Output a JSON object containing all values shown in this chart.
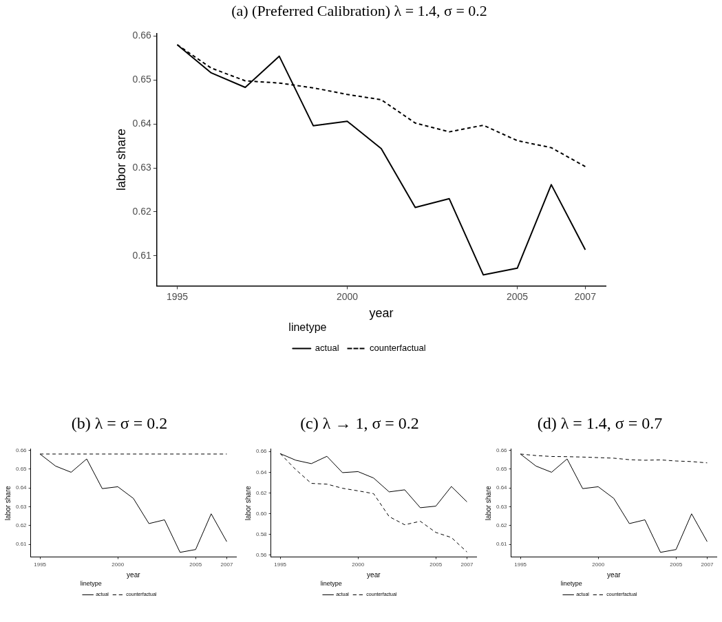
{
  "chart_data": [
    {
      "type": "line",
      "title": "(a) (Preferred Calibration) λ = 1.4, σ = 0.2",
      "xlabel": "year",
      "ylabel": "labor share",
      "legend_title": "linetype",
      "legend": "bottom",
      "grid": false,
      "marker": "none",
      "x": [
        1995,
        1996,
        1997,
        1998,
        1999,
        2000,
        2001,
        2002,
        2003,
        2004,
        2005,
        2006,
        2007
      ],
      "series": [
        {
          "name": "actual",
          "color": "#000000",
          "line_style": "solid",
          "values": [
            0.658,
            0.6516,
            0.6483,
            0.6554,
            0.6396,
            0.6406,
            0.6344,
            0.621,
            0.623,
            0.6057,
            0.6072,
            0.6262,
            0.6114
          ]
        },
        {
          "name": "counterfactual",
          "color": "#000000",
          "line_style": "dashed",
          "values": [
            0.658,
            0.6527,
            0.6498,
            0.6493,
            0.6482,
            0.6467,
            0.6455,
            0.6402,
            0.6382,
            0.6397,
            0.6362,
            0.6346,
            0.6303
          ]
        }
      ],
      "xlim": [
        1994.4,
        2007.6
      ],
      "xticks": [
        1995,
        2000,
        2005,
        2007
      ],
      "ylim": [
        0.6032,
        0.6606
      ],
      "yticks": [
        0.61,
        0.62,
        0.63,
        0.64,
        0.65,
        0.66
      ]
    },
    {
      "type": "line",
      "title": "(b) λ = σ = 0.2",
      "xlabel": "year",
      "ylabel": "labor share",
      "legend_title": "linetype",
      "legend": "bottom",
      "grid": false,
      "marker": "none",
      "x": [
        1995,
        1996,
        1997,
        1998,
        1999,
        2000,
        2001,
        2002,
        2003,
        2004,
        2005,
        2006,
        2007
      ],
      "series": [
        {
          "name": "actual",
          "color": "#000000",
          "line_style": "solid",
          "values": [
            0.658,
            0.6516,
            0.6483,
            0.6554,
            0.6396,
            0.6406,
            0.6344,
            0.621,
            0.623,
            0.6057,
            0.6072,
            0.6262,
            0.6114
          ]
        },
        {
          "name": "counterfactual",
          "color": "#000000",
          "line_style": "dashed",
          "values": [
            0.658,
            0.658,
            0.658,
            0.658,
            0.658,
            0.658,
            0.658,
            0.658,
            0.658,
            0.658,
            0.658,
            0.658,
            0.658
          ]
        }
      ],
      "xlim": [
        1994.4,
        2007.6
      ],
      "xticks": [
        1995,
        2000,
        2005,
        2007
      ],
      "ylim": [
        0.6032,
        0.6606
      ],
      "yticks": [
        0.61,
        0.62,
        0.63,
        0.64,
        0.65,
        0.66
      ]
    },
    {
      "type": "line",
      "title": "(c) λ → 1, σ = 0.2",
      "xlabel": "year",
      "ylabel": "labor share",
      "legend_title": "linetype",
      "legend": "bottom",
      "grid": false,
      "marker": "none",
      "x": [
        1995,
        1996,
        1997,
        1998,
        1999,
        2000,
        2001,
        2002,
        2003,
        2004,
        2005,
        2006,
        2007
      ],
      "series": [
        {
          "name": "actual",
          "color": "#000000",
          "line_style": "solid",
          "values": [
            0.658,
            0.6516,
            0.6483,
            0.6554,
            0.6396,
            0.6406,
            0.6344,
            0.621,
            0.623,
            0.6057,
            0.6072,
            0.6262,
            0.6114
          ]
        },
        {
          "name": "counterfactual",
          "color": "#000000",
          "line_style": "dashed",
          "values": [
            0.658,
            0.6425,
            0.6292,
            0.6285,
            0.6245,
            0.622,
            0.6193,
            0.5971,
            0.5892,
            0.5926,
            0.5818,
            0.5769,
            0.5629
          ]
        }
      ],
      "xlim": [
        1994.4,
        2007.6
      ],
      "xticks": [
        1995,
        2000,
        2005,
        2007
      ],
      "ylim": [
        0.558,
        0.6623
      ],
      "yticks": [
        0.56,
        0.58,
        {
          "value": 0.6,
          "label": "0.60"
        },
        0.62,
        0.64,
        0.66
      ]
    },
    {
      "type": "line",
      "title": "(d) λ = 1.4, σ = 0.7",
      "xlabel": "year",
      "ylabel": "labor share",
      "legend_title": "linetype",
      "legend": "bottom",
      "grid": false,
      "marker": "none",
      "x": [
        1995,
        1996,
        1997,
        1998,
        1999,
        2000,
        2001,
        2002,
        2003,
        2004,
        2005,
        2006,
        2007
      ],
      "series": [
        {
          "name": "actual",
          "color": "#000000",
          "line_style": "solid",
          "values": [
            0.658,
            0.6516,
            0.6483,
            0.6554,
            0.6396,
            0.6406,
            0.6344,
            0.621,
            0.623,
            0.6057,
            0.6072,
            0.6262,
            0.6114
          ]
        },
        {
          "name": "counterfactual",
          "color": "#000000",
          "line_style": "dashed",
          "values": [
            0.658,
            0.6572,
            0.6567,
            0.6566,
            0.6564,
            0.6561,
            0.6558,
            0.655,
            0.6547,
            0.6549,
            0.6543,
            0.654,
            0.6533
          ]
        }
      ],
      "xlim": [
        1994.4,
        2007.6
      ],
      "xticks": [
        1995,
        2000,
        2005,
        2007
      ],
      "ylim": [
        0.6032,
        0.6606
      ],
      "yticks": [
        0.61,
        0.62,
        0.63,
        0.64,
        0.65,
        0.66
      ]
    }
  ]
}
